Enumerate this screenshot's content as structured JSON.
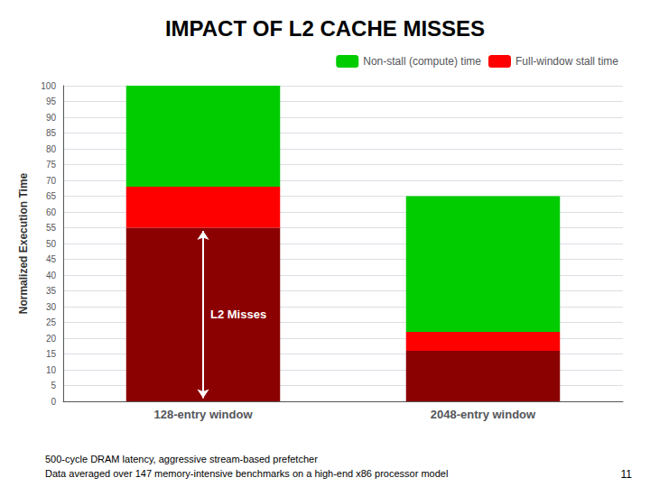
{
  "chart_data": {
    "type": "bar",
    "title": "IMPACT OF L2 CACHE MISSES",
    "ylabel": "Normalized Execution Time",
    "categories": [
      "128-entry window",
      "2048-entry window"
    ],
    "stacked": true,
    "series": [
      {
        "color": "#8B0000",
        "values": [
          55,
          16
        ]
      },
      {
        "name": "Full-window stall time",
        "color": "#FF0000",
        "values": [
          13,
          6
        ]
      },
      {
        "name": "Non-stall (compute) time",
        "color": "#00CC00",
        "values": [
          32,
          43
        ]
      }
    ],
    "ylim": [
      0,
      100
    ],
    "yticks": [
      0,
      5,
      10,
      15,
      20,
      25,
      30,
      35,
      40,
      45,
      50,
      55,
      60,
      65,
      70,
      75,
      80,
      85,
      90,
      95,
      100
    ],
    "grid": true,
    "legend": "upper right",
    "annotation": {
      "text": "L2 Misses",
      "category": "128-entry window",
      "y_range": [
        1,
        54
      ]
    },
    "footnotes": [
      "500-cycle DRAM latency, aggressive stream-based prefetcher",
      "Data averaged over 147 memory-intensive benchmarks on a high-end x86 processor model"
    ],
    "page_number": "11"
  }
}
